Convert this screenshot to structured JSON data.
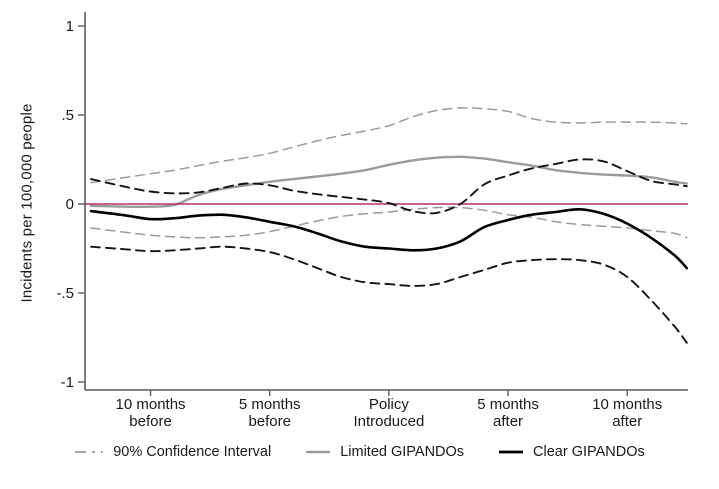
{
  "figure_title": "",
  "chart_data": {
    "type": "line",
    "title": "",
    "xlabel": "",
    "ylabel": "Incidents per 100,000 people",
    "xlim": [
      -12.75,
      12.55
    ],
    "ylim": [
      -1.04,
      1.08
    ],
    "grid": false,
    "colors": {
      "reference_line": "#b73355",
      "gray_series": "#9b9b9b",
      "black_series": "#000000",
      "axis": "#5a5a5a",
      "text": "#1a1a1a"
    },
    "y_ticks": [
      {
        "value": 1,
        "label": "1"
      },
      {
        "value": 0.5,
        "label": ".5"
      },
      {
        "value": 0,
        "label": "0"
      },
      {
        "value": -0.5,
        "label": "-.5"
      },
      {
        "value": -1,
        "label": "-1"
      }
    ],
    "x_ticks": [
      {
        "value": -10,
        "label_lines": [
          "10 months",
          "before"
        ]
      },
      {
        "value": -5,
        "label_lines": [
          "5 months",
          "before"
        ]
      },
      {
        "value": 0,
        "label_lines": [
          "Policy",
          "Introduced"
        ]
      },
      {
        "value": 5,
        "label_lines": [
          "5 months",
          "after"
        ]
      },
      {
        "value": 10,
        "label_lines": [
          "10 months",
          "after"
        ]
      }
    ],
    "reference_line": {
      "y": 0
    },
    "x_months": [
      -12.5,
      -11,
      -10,
      -9,
      -8,
      -7,
      -6,
      -5,
      -4,
      -3,
      -2,
      -1,
      0,
      1,
      2,
      3,
      4,
      5,
      6,
      7,
      8,
      9,
      10,
      11,
      12,
      12.5
    ],
    "series": [
      {
        "name": "Limited GIPANDOs 90% CI upper",
        "role": "ci_upper",
        "group": "limited",
        "style": "dashed",
        "color": "#9b9b9b",
        "width": 1.5,
        "values": [
          0.12,
          0.15,
          0.17,
          0.19,
          0.215,
          0.24,
          0.26,
          0.285,
          0.32,
          0.355,
          0.385,
          0.41,
          0.44,
          0.49,
          0.525,
          0.54,
          0.535,
          0.52,
          0.48,
          0.46,
          0.455,
          0.46,
          0.46,
          0.46,
          0.455,
          0.45
        ]
      },
      {
        "name": "Limited GIPANDOs 90% CI lower",
        "role": "ci_lower",
        "group": "limited",
        "style": "dashed",
        "color": "#9b9b9b",
        "width": 1.5,
        "values": [
          -0.135,
          -0.16,
          -0.175,
          -0.185,
          -0.19,
          -0.185,
          -0.175,
          -0.155,
          -0.125,
          -0.095,
          -0.07,
          -0.055,
          -0.045,
          -0.03,
          -0.02,
          -0.02,
          -0.035,
          -0.06,
          -0.075,
          -0.1,
          -0.115,
          -0.125,
          -0.135,
          -0.15,
          -0.165,
          -0.19
        ]
      },
      {
        "name": "Limited GIPANDOs",
        "role": "estimate",
        "group": "limited",
        "style": "solid",
        "color": "#9b9b9b",
        "width": 2.4,
        "values": [
          -0.01,
          -0.015,
          -0.015,
          -0.005,
          0.05,
          0.085,
          0.105,
          0.125,
          0.14,
          0.155,
          0.17,
          0.19,
          0.22,
          0.245,
          0.26,
          0.265,
          0.255,
          0.235,
          0.215,
          0.19,
          0.175,
          0.165,
          0.16,
          0.15,
          0.125,
          0.115
        ]
      },
      {
        "name": "Clear GIPANDOs 90% CI upper",
        "role": "ci_upper",
        "group": "clear",
        "style": "dashed",
        "color": "#141414",
        "width": 1.9,
        "values": [
          0.14,
          0.095,
          0.07,
          0.06,
          0.065,
          0.09,
          0.115,
          0.105,
          0.075,
          0.055,
          0.04,
          0.025,
          0.005,
          -0.04,
          -0.05,
          0.0,
          0.11,
          0.16,
          0.2,
          0.225,
          0.25,
          0.24,
          0.185,
          0.13,
          0.11,
          0.1
        ]
      },
      {
        "name": "Clear GIPANDOs 90% CI lower",
        "role": "ci_lower",
        "group": "clear",
        "style": "dashed",
        "color": "#141414",
        "width": 1.9,
        "values": [
          -0.24,
          -0.255,
          -0.265,
          -0.26,
          -0.25,
          -0.24,
          -0.25,
          -0.27,
          -0.31,
          -0.36,
          -0.41,
          -0.44,
          -0.45,
          -0.46,
          -0.45,
          -0.41,
          -0.37,
          -0.33,
          -0.315,
          -0.31,
          -0.315,
          -0.34,
          -0.41,
          -0.54,
          -0.69,
          -0.78
        ]
      },
      {
        "name": "Clear GIPANDOs",
        "role": "estimate",
        "group": "clear",
        "style": "solid",
        "color": "#000000",
        "width": 2.6,
        "values": [
          -0.04,
          -0.065,
          -0.085,
          -0.08,
          -0.065,
          -0.06,
          -0.075,
          -0.1,
          -0.125,
          -0.165,
          -0.21,
          -0.24,
          -0.25,
          -0.26,
          -0.25,
          -0.21,
          -0.13,
          -0.09,
          -0.06,
          -0.045,
          -0.03,
          -0.055,
          -0.11,
          -0.19,
          -0.29,
          -0.36
        ]
      }
    ],
    "legend_position": "bottom"
  },
  "legend": {
    "items": [
      {
        "label": "90% Confidence Interval",
        "style": "dashed",
        "color": "#9b9b9b"
      },
      {
        "label": "Limited GIPANDOs",
        "style": "solid",
        "color": "#9b9b9b"
      },
      {
        "label": "Clear GIPANDOs",
        "style": "solid",
        "color": "#000000"
      }
    ]
  }
}
